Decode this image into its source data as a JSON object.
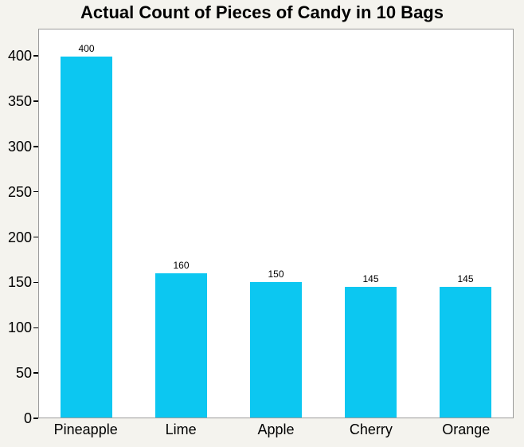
{
  "chart_data": {
    "type": "bar",
    "title": "Actual Count of Pieces of Candy in 10 Bags",
    "categories": [
      "Pineapple",
      "Lime",
      "Apple",
      "Cherry",
      "Orange"
    ],
    "values": [
      400,
      160,
      150,
      145,
      145
    ],
    "bar_labels": [
      "400",
      "160",
      "150",
      "145",
      "145"
    ],
    "xlabel": "",
    "ylabel": "",
    "ylim": [
      0,
      430
    ],
    "yticks": [
      0,
      50,
      100,
      150,
      200,
      250,
      300,
      350,
      400
    ],
    "grid": false,
    "legend": "none",
    "colors": {
      "bar": "#0CC7F1",
      "page_background": "#F4F3EE",
      "plot_background": "#FFFFFF",
      "plot_border": "#9B9B9B",
      "text": "#000000"
    }
  }
}
